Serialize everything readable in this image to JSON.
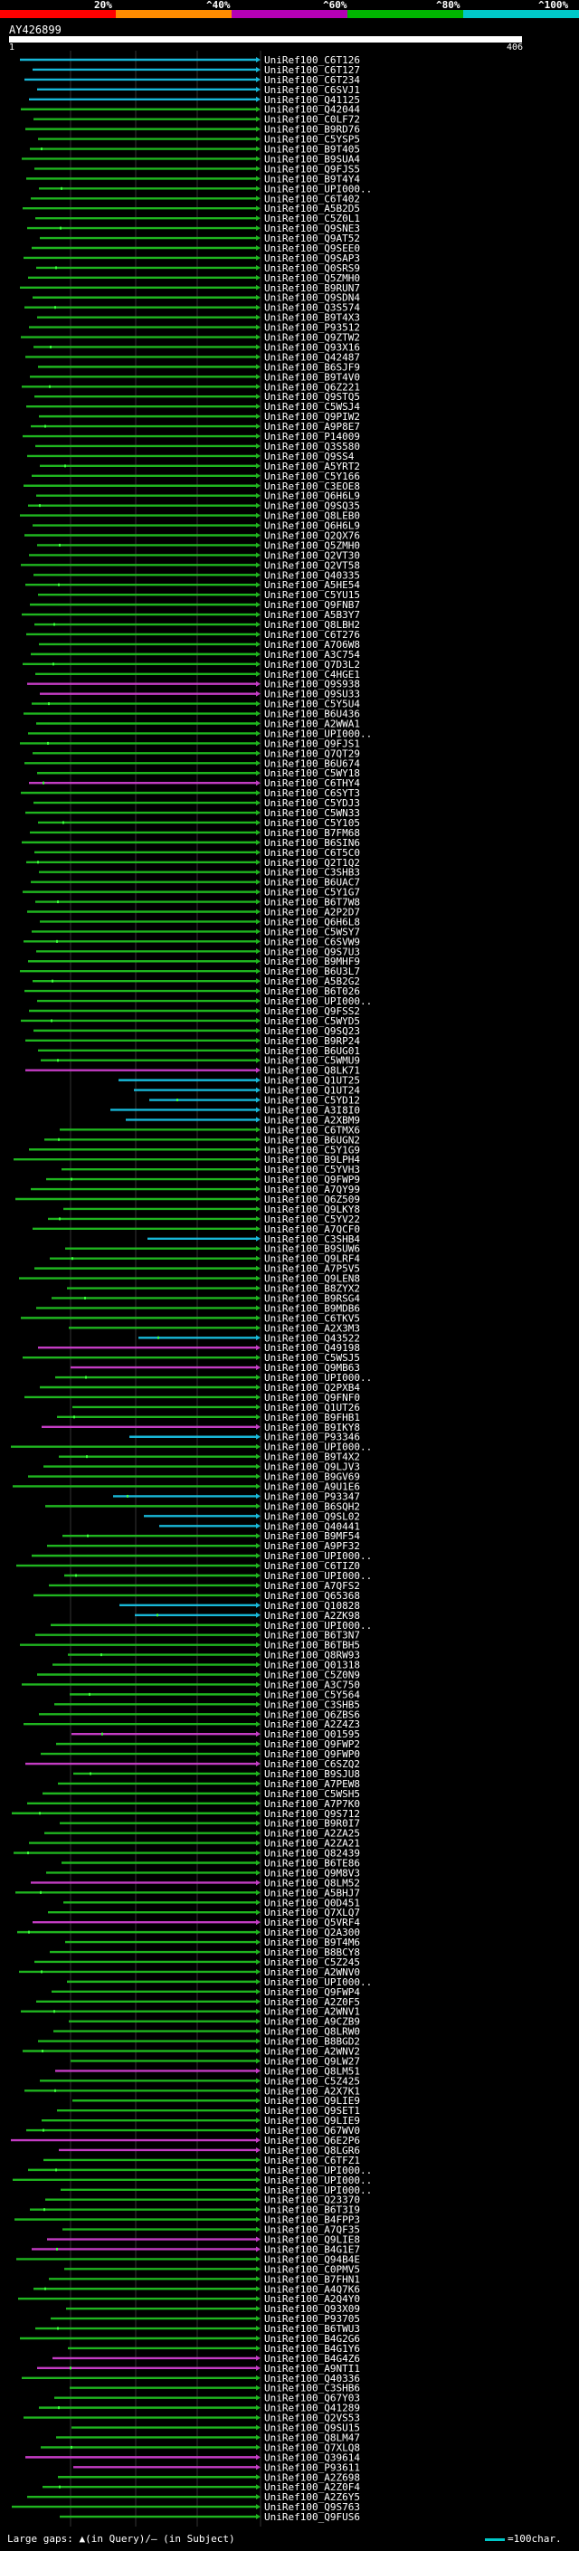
{
  "scale": {
    "labels": [
      "20%",
      "^40%",
      "^60%",
      "^80%",
      "^100%"
    ],
    "colors": [
      "#ff0000",
      "#ff8c00",
      "#b400b4",
      "#00b400",
      "#00c8c8"
    ]
  },
  "query": {
    "name": "AY426899",
    "start": "1",
    "end": "406"
  },
  "colors": {
    "green": "#1fb51f",
    "cyan": "#18b8d8",
    "magenta": "#c43cc4",
    "lime": "#3cff3c",
    "grid": "#333333"
  },
  "hits": [
    {
      "label": "UniRef100_C6T126",
      "color": "cyan"
    },
    {
      "label": "UniRef100_C6T127",
      "color": "cyan"
    },
    {
      "label": "UniRef100_C6T234",
      "color": "cyan"
    },
    {
      "label": "UniRef100_C6SVJ1",
      "color": "cyan"
    },
    {
      "label": "UniRef100_Q41125",
      "color": "cyan"
    },
    {
      "label": "UniRef100_Q42044",
      "color": "green"
    },
    {
      "label": "UniRef100_C0LF72",
      "color": "green"
    },
    {
      "label": "UniRef100_B9RD76",
      "color": "green"
    },
    {
      "label": "UniRef100_C5YSP5",
      "color": "green"
    },
    {
      "label": "UniRef100_B9T405",
      "color": "green"
    },
    {
      "label": "UniRef100_B9SUA4",
      "color": "green"
    },
    {
      "label": "UniRef100_Q9FJS5",
      "color": "green"
    },
    {
      "label": "UniRef100_B9T4Y4",
      "color": "green"
    },
    {
      "label": "UniRef100_UPI000..",
      "color": "green"
    },
    {
      "label": "UniRef100_C6T402",
      "color": "green"
    },
    {
      "label": "UniRef100_A5B2D5",
      "color": "green"
    },
    {
      "label": "UniRef100_C5Z0L1",
      "color": "green"
    },
    {
      "label": "UniRef100_Q9SNE3",
      "color": "green"
    },
    {
      "label": "UniRef100_Q9AT52",
      "color": "green"
    },
    {
      "label": "UniRef100_Q9SEE0",
      "color": "green"
    },
    {
      "label": "UniRef100_Q9SAP3",
      "color": "green"
    },
    {
      "label": "UniRef100_Q0SRS9",
      "color": "green"
    },
    {
      "label": "UniRef100_Q5ZMH0",
      "color": "green"
    },
    {
      "label": "UniRef100_B9RUN7",
      "color": "green"
    },
    {
      "label": "UniRef100_Q9SDN4",
      "color": "green"
    },
    {
      "label": "UniRef100_Q3S574",
      "color": "green"
    },
    {
      "label": "UniRef100_B9T4X3",
      "color": "green"
    },
    {
      "label": "UniRef100_P93512",
      "color": "green"
    },
    {
      "label": "UniRef100_Q9ZTW2",
      "color": "green"
    },
    {
      "label": "UniRef100_Q93X16",
      "color": "green"
    },
    {
      "label": "UniRef100_Q42487",
      "color": "green"
    },
    {
      "label": "UniRef100_B6SJF9",
      "color": "green"
    },
    {
      "label": "UniRef100_B9T4V0",
      "color": "green"
    },
    {
      "label": "UniRef100_Q6Z221",
      "color": "green"
    },
    {
      "label": "UniRef100_Q9STQ5",
      "color": "green"
    },
    {
      "label": "UniRef100_C5WSJ4",
      "color": "green"
    },
    {
      "label": "UniRef100_Q9PIW2",
      "color": "green"
    },
    {
      "label": "UniRef100_A9P8E7",
      "color": "green"
    },
    {
      "label": "UniRef100_P14009",
      "color": "green"
    },
    {
      "label": "UniRef100_Q3S580",
      "color": "green"
    },
    {
      "label": "UniRef100_Q9SS4",
      "color": "green"
    },
    {
      "label": "UniRef100_A5YRT2",
      "color": "green"
    },
    {
      "label": "UniRef100_C5Y166",
      "color": "green"
    },
    {
      "label": "UniRef100_C3EOE8",
      "color": "green"
    },
    {
      "label": "UniRef100_Q6H6L9",
      "color": "green"
    },
    {
      "label": "UniRef100_Q9SQ35",
      "color": "green"
    },
    {
      "label": "UniRef100_Q8LEB0",
      "color": "green"
    },
    {
      "label": "UniRef100_Q6H6L9",
      "color": "green"
    },
    {
      "label": "UniRef100_Q2QX76",
      "color": "green"
    },
    {
      "label": "UniRef100_Q5ZMH0",
      "color": "green"
    },
    {
      "label": "UniRef100_Q2VT30",
      "color": "green"
    },
    {
      "label": "UniRef100_Q2VT58",
      "color": "green"
    },
    {
      "label": "UniRef100_Q40335",
      "color": "green"
    },
    {
      "label": "UniRef100_A5HE54",
      "color": "green"
    },
    {
      "label": "UniRef100_C5YU15",
      "color": "green"
    },
    {
      "label": "UniRef100_Q9FNB7",
      "color": "green"
    },
    {
      "label": "UniRef100_A5B3Y7",
      "color": "green"
    },
    {
      "label": "UniRef100_Q8LBH2",
      "color": "green"
    },
    {
      "label": "UniRef100_C6T276",
      "color": "green"
    },
    {
      "label": "UniRef100_A7O6W8",
      "color": "green"
    },
    {
      "label": "UniRef100_A3C754",
      "color": "green"
    },
    {
      "label": "UniRef100_Q7D3L2",
      "color": "green"
    },
    {
      "label": "UniRef100_C4HGE1",
      "color": "green"
    },
    {
      "label": "UniRef100_Q9S938",
      "color": "magenta"
    },
    {
      "label": "UniRef100_Q9SU33",
      "color": "magenta"
    },
    {
      "label": "UniRef100_C5Y5U4",
      "color": "green"
    },
    {
      "label": "UniRef100_B6U436",
      "color": "green"
    },
    {
      "label": "UniRef100_A2WWA1",
      "color": "green"
    },
    {
      "label": "UniRef100_UPI000..",
      "color": "green"
    },
    {
      "label": "UniRef100_Q9FJS1",
      "color": "green"
    },
    {
      "label": "UniRef100_Q7QT29",
      "color": "green"
    },
    {
      "label": "UniRef100_B6U674",
      "color": "green"
    },
    {
      "label": "UniRef100_C5WY18",
      "color": "green"
    },
    {
      "label": "UniRef100_C6THY4",
      "color": "magenta"
    },
    {
      "label": "UniRef100_C6SYT3",
      "color": "green"
    },
    {
      "label": "UniRef100_C5YDJ3",
      "color": "green"
    },
    {
      "label": "UniRef100_C5WN33",
      "color": "green"
    },
    {
      "label": "UniRef100_C5Y105",
      "color": "green"
    },
    {
      "label": "UniRef100_B7FM68",
      "color": "green"
    },
    {
      "label": "UniRef100_B6SIN6",
      "color": "green"
    },
    {
      "label": "UniRef100_C6T5C0",
      "color": "green"
    },
    {
      "label": "UniRef100_Q2T1Q2",
      "color": "green"
    },
    {
      "label": "UniRef100_C3SHB3",
      "color": "green"
    },
    {
      "label": "UniRef100_B6UAC7",
      "color": "green"
    },
    {
      "label": "UniRef100_C5Y1G7",
      "color": "green"
    },
    {
      "label": "UniRef100_B6T7W8",
      "color": "green"
    },
    {
      "label": "UniRef100_A2P2D7",
      "color": "green"
    },
    {
      "label": "UniRef100_Q6H6L8",
      "color": "green"
    },
    {
      "label": "UniRef100_C5WSY7",
      "color": "green"
    },
    {
      "label": "UniRef100_C6SVW9",
      "color": "green"
    },
    {
      "label": "UniRef100_Q9S7U3",
      "color": "green"
    },
    {
      "label": "UniRef100_B9MHF9",
      "color": "green"
    },
    {
      "label": "UniRef100_B6U3L7",
      "color": "green"
    },
    {
      "label": "UniRef100_A5B2G2",
      "color": "green"
    },
    {
      "label": "UniRef100_B6T026",
      "color": "green"
    },
    {
      "label": "UniRef100_UPI000..",
      "color": "green"
    },
    {
      "label": "UniRef100_Q9FSS2",
      "color": "green"
    },
    {
      "label": "UniRef100_C5WYD5",
      "color": "green"
    },
    {
      "label": "UniRef100_Q9SQ23",
      "color": "green"
    },
    {
      "label": "UniRef100_B9RP24",
      "color": "green"
    },
    {
      "label": "UniRef100_B6UG01",
      "color": "green"
    },
    {
      "label": "UniRef100_C5WMU9",
      "color": "green"
    },
    {
      "label": "UniRef100_Q8LK71",
      "color": "magenta"
    },
    {
      "label": "UniRef100_Q1UT25",
      "color": "cyan"
    },
    {
      "label": "UniRef100_Q1UT24",
      "color": "cyan"
    },
    {
      "label": "UniRef100_C5YD12",
      "color": "cyan"
    },
    {
      "label": "UniRef100_A3I8I0",
      "color": "cyan"
    },
    {
      "label": "UniRef100_A2XBM9",
      "color": "cyan"
    },
    {
      "label": "UniRef100_C6TMX6",
      "color": "green"
    },
    {
      "label": "UniRef100_B6UGN2",
      "color": "green"
    },
    {
      "label": "UniRef100_C5Y1G9",
      "color": "green"
    },
    {
      "label": "UniRef100_B9LPH4",
      "color": "green"
    },
    {
      "label": "UniRef100_C5YVH3",
      "color": "green"
    },
    {
      "label": "UniRef100_Q9FWP9",
      "color": "green"
    },
    {
      "label": "UniRef100_A7QY99",
      "color": "green"
    },
    {
      "label": "UniRef100_Q6Z509",
      "color": "green"
    },
    {
      "label": "UniRef100_Q9LKY8",
      "color": "green"
    },
    {
      "label": "UniRef100_C5YV22",
      "color": "green"
    },
    {
      "label": "UniRef100_A7QCF0",
      "color": "green"
    },
    {
      "label": "UniRef100_C3SHB4",
      "color": "cyan"
    },
    {
      "label": "UniRef100_B9SUW6",
      "color": "green"
    },
    {
      "label": "UniRef100_Q9LRF4",
      "color": "green"
    },
    {
      "label": "UniRef100_A7P5V5",
      "color": "green"
    },
    {
      "label": "UniRef100_Q9LEN8",
      "color": "green"
    },
    {
      "label": "UniRef100_B8ZYX2",
      "color": "green"
    },
    {
      "label": "UniRef100_B9RSG4",
      "color": "green"
    },
    {
      "label": "UniRef100_B9MDB6",
      "color": "green"
    },
    {
      "label": "UniRef100_C6TKV5",
      "color": "green"
    },
    {
      "label": "UniRef100_A2X3M3",
      "color": "green"
    },
    {
      "label": "UniRef100_Q43522",
      "color": "cyan"
    },
    {
      "label": "UniRef100_Q49198",
      "color": "magenta"
    },
    {
      "label": "UniRef100_C5WSJ5",
      "color": "green"
    },
    {
      "label": "UniRef100_Q9MB63",
      "color": "magenta"
    },
    {
      "label": "UniRef100_UPI000..",
      "color": "green"
    },
    {
      "label": "UniRef100_Q2PXB4",
      "color": "green"
    },
    {
      "label": "UniRef100_Q9FNF0",
      "color": "green"
    },
    {
      "label": "UniRef100_Q1UT26",
      "color": "green"
    },
    {
      "label": "UniRef100_B9FHB1",
      "color": "green"
    },
    {
      "label": "UniRef100_B9IKY8",
      "color": "magenta"
    },
    {
      "label": "UniRef100_P93346",
      "color": "cyan"
    },
    {
      "label": "UniRef100_UPI000..",
      "color": "green"
    },
    {
      "label": "UniRef100_B9T4X2",
      "color": "green"
    },
    {
      "label": "UniRef100_Q9LJV3",
      "color": "green"
    },
    {
      "label": "UniRef100_B9GV69",
      "color": "green"
    },
    {
      "label": "UniRef100_A9U1E6",
      "color": "green"
    },
    {
      "label": "UniRef100_P93347",
      "color": "cyan"
    },
    {
      "label": "UniRef100_B6SQH2",
      "color": "green"
    },
    {
      "label": "UniRef100_Q9SL02",
      "color": "cyan"
    },
    {
      "label": "UniRef100_Q40441",
      "color": "cyan"
    },
    {
      "label": "UniRef100_B9MF54",
      "color": "green"
    },
    {
      "label": "UniRef100_A9PF32",
      "color": "green"
    },
    {
      "label": "UniRef100_UPI000..",
      "color": "green"
    },
    {
      "label": "UniRef100_C6TIZ0",
      "color": "green"
    },
    {
      "label": "UniRef100_UPI000..",
      "color": "green"
    },
    {
      "label": "UniRef100_A7QFS2",
      "color": "green"
    },
    {
      "label": "UniRef100_Q65368",
      "color": "green"
    },
    {
      "label": "UniRef100_Q10828",
      "color": "cyan"
    },
    {
      "label": "UniRef100_A2ZK98",
      "color": "cyan"
    },
    {
      "label": "UniRef100_UPI000..",
      "color": "green"
    },
    {
      "label": "UniRef100_B6T3N7",
      "color": "green"
    },
    {
      "label": "UniRef100_B6TBH5",
      "color": "green"
    },
    {
      "label": "UniRef100_Q8RW93",
      "color": "green"
    },
    {
      "label": "UniRef100_Q01318",
      "color": "green"
    },
    {
      "label": "UniRef100_C5Z0N9",
      "color": "green"
    },
    {
      "label": "UniRef100_A3C750",
      "color": "green"
    },
    {
      "label": "UniRef100_C5Y564",
      "color": "green"
    },
    {
      "label": "UniRef100_C3SHB5",
      "color": "green"
    },
    {
      "label": "UniRef100_Q6ZBS6",
      "color": "green"
    },
    {
      "label": "UniRef100_A2Z4Z3",
      "color": "green"
    },
    {
      "label": "UniRef100_Q01595",
      "color": "magenta"
    },
    {
      "label": "UniRef100_Q9FWP2",
      "color": "green"
    },
    {
      "label": "UniRef100_Q9FWP0",
      "color": "green"
    },
    {
      "label": "UniRef100_C6SZQ2",
      "color": "magenta"
    },
    {
      "label": "UniRef100_B9SJU8",
      "color": "green"
    },
    {
      "label": "UniRef100_A7PEW8",
      "color": "green"
    },
    {
      "label": "UniRef100_C5WSH5",
      "color": "green"
    },
    {
      "label": "UniRef100_A7P7K0",
      "color": "green"
    },
    {
      "label": "UniRef100_Q9S712",
      "color": "green"
    },
    {
      "label": "UniRef100_B9R0I7",
      "color": "green"
    },
    {
      "label": "UniRef100_A2ZA25",
      "color": "green"
    },
    {
      "label": "UniRef100_A2ZA21",
      "color": "green"
    },
    {
      "label": "UniRef100_Q82439",
      "color": "green"
    },
    {
      "label": "UniRef100_B6TE86",
      "color": "green"
    },
    {
      "label": "UniRef100_Q9M8V3",
      "color": "green"
    },
    {
      "label": "UniRef100_Q8LM52",
      "color": "magenta"
    },
    {
      "label": "UniRef100_A5BHJ7",
      "color": "green"
    },
    {
      "label": "UniRef100_Q0D451",
      "color": "green"
    },
    {
      "label": "UniRef100_Q7XLQ7",
      "color": "green"
    },
    {
      "label": "UniRef100_Q5VRF4",
      "color": "magenta"
    },
    {
      "label": "UniRef100_Q2A300",
      "color": "green"
    },
    {
      "label": "UniRef100_B9T4M6",
      "color": "green"
    },
    {
      "label": "UniRef100_B8BCY8",
      "color": "green"
    },
    {
      "label": "UniRef100_C5Z245",
      "color": "green"
    },
    {
      "label": "UniRef100_A2WNV0",
      "color": "green"
    },
    {
      "label": "UniRef100_UPI000..",
      "color": "green"
    },
    {
      "label": "UniRef100_Q9FWP4",
      "color": "green"
    },
    {
      "label": "UniRef100_A2Z0F5",
      "color": "green"
    },
    {
      "label": "UniRef100_A2WNV1",
      "color": "green"
    },
    {
      "label": "UniRef100_A9CZB9",
      "color": "green"
    },
    {
      "label": "UniRef100_Q8LRW0",
      "color": "green"
    },
    {
      "label": "UniRef100_B8BGD2",
      "color": "green"
    },
    {
      "label": "UniRef100_A2WNV2",
      "color": "green"
    },
    {
      "label": "UniRef100_Q9LW27",
      "color": "green"
    },
    {
      "label": "UniRef100_Q8LM51",
      "color": "magenta"
    },
    {
      "label": "UniRef100_C5Z425",
      "color": "green"
    },
    {
      "label": "UniRef100_A2X7K1",
      "color": "green"
    },
    {
      "label": "UniRef100_Q9LIE9",
      "color": "green"
    },
    {
      "label": "UniRef100_Q9SET1",
      "color": "green"
    },
    {
      "label": "UniRef100_Q9LIE9",
      "color": "green"
    },
    {
      "label": "UniRef100_Q67WV0",
      "color": "green"
    },
    {
      "label": "UniRef100_Q6E2P6",
      "color": "magenta"
    },
    {
      "label": "UniRef100_Q8LGR6",
      "color": "magenta"
    },
    {
      "label": "UniRef100_C6TFZ1",
      "color": "green"
    },
    {
      "label": "UniRef100_UPI000..",
      "color": "green"
    },
    {
      "label": "UniRef100_UPI000..",
      "color": "green"
    },
    {
      "label": "UniRef100_UPI000..",
      "color": "green"
    },
    {
      "label": "UniRef100_Q23370",
      "color": "green"
    },
    {
      "label": "UniRef100_B6T3I9",
      "color": "green"
    },
    {
      "label": "UniRef100_B4FPP3",
      "color": "green"
    },
    {
      "label": "UniRef100_A7QF35",
      "color": "green"
    },
    {
      "label": "UniRef100_Q9LIE8",
      "color": "magenta"
    },
    {
      "label": "UniRef100_B4G1E7",
      "color": "magenta"
    },
    {
      "label": "UniRef100_Q94B4E",
      "color": "green"
    },
    {
      "label": "UniRef100_C0PMV5",
      "color": "green"
    },
    {
      "label": "UniRef100_B7FHN1",
      "color": "green"
    },
    {
      "label": "UniRef100_A4Q7K6",
      "color": "green"
    },
    {
      "label": "UniRef100_A2Q4Y0",
      "color": "green"
    },
    {
      "label": "UniRef100_Q93X09",
      "color": "green"
    },
    {
      "label": "UniRef100_P93705",
      "color": "green"
    },
    {
      "label": "UniRef100_B6TWU3",
      "color": "green"
    },
    {
      "label": "UniRef100_B4G2G6",
      "color": "green"
    },
    {
      "label": "UniRef100_B4G1Y6",
      "color": "green"
    },
    {
      "label": "UniRef100_B4G4Z6",
      "color": "magenta"
    },
    {
      "label": "UniRef100_A9NTI1",
      "color": "magenta"
    },
    {
      "label": "UniRef100_Q40336",
      "color": "green"
    },
    {
      "label": "UniRef100_C3SHB6",
      "color": "green"
    },
    {
      "label": "UniRef100_Q67Y03",
      "color": "green"
    },
    {
      "label": "UniRef100_Q41289",
      "color": "green"
    },
    {
      "label": "UniRef100_Q2VS53",
      "color": "green"
    },
    {
      "label": "UniRef100_Q9SU15",
      "color": "green"
    },
    {
      "label": "UniRef100_Q8LM47",
      "color": "green"
    },
    {
      "label": "UniRef100_Q7XLQ8",
      "color": "green"
    },
    {
      "label": "UniRef100_Q39614",
      "color": "magenta"
    },
    {
      "label": "UniRef100_P93611",
      "color": "magenta"
    },
    {
      "label": "UniRef100_A2Z698",
      "color": "green"
    },
    {
      "label": "UniRef100_A2Z0F4",
      "color": "green"
    },
    {
      "label": "UniRef100_A2Z6Y5",
      "color": "green"
    },
    {
      "label": "UniRef100_Q9S763",
      "color": "green"
    },
    {
      "label": "UniRef100_Q9FUS6",
      "color": "green"
    }
  ],
  "legend": {
    "text": "Large gaps: ▲(in Query)/— (in Subject)",
    "scale_text": "=100char."
  }
}
